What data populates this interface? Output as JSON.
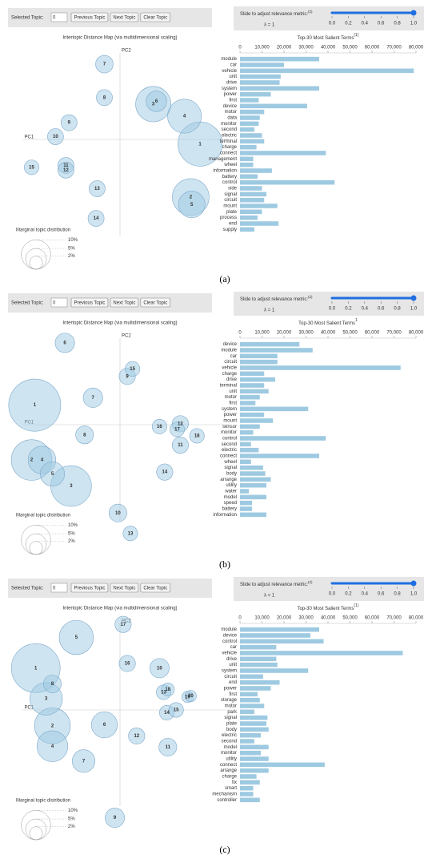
{
  "panels": [
    {
      "caption": "(a)",
      "controls": {
        "selected_topic_label": "Selected Topic:",
        "selected_topic": "0",
        "buttons": [
          "Previous Topic",
          "Next Topic",
          "Clear Topic"
        ],
        "slider_label": "Slide to adjust relevance metric:",
        "slider_note": "(2)",
        "slider_lim": [
          0,
          1
        ],
        "slider_ticks": [
          {
            "value": 0,
            "label": "0.0"
          },
          {
            "value": 0.2,
            "label": "0.2"
          },
          {
            "value": 0.4,
            "label": "0.4"
          },
          {
            "value": 0.6,
            "label": "0.6"
          },
          {
            "value": 0.8,
            "label": "0.8"
          },
          {
            "value": 1,
            "label": "1.0"
          }
        ],
        "slider_value": 1,
        "lambda_label": "λ = 1"
      }
    },
    {
      "caption": "(b)",
      "controls": {
        "selected_topic_label": "Selected Topic:",
        "selected_topic": "0",
        "buttons": [
          "Previous Topic",
          "Next Topic",
          "Clear Topic"
        ],
        "slider_label": "Slide to adjust relevance metric:",
        "slider_note": "(2)",
        "slider_lim": [
          0,
          1
        ],
        "slider_ticks": [
          {
            "value": 0,
            "label": "0.0"
          },
          {
            "value": 0.2,
            "label": "0.2"
          },
          {
            "value": 0.4,
            "label": "0.4"
          },
          {
            "value": 0.6,
            "label": "0.6"
          },
          {
            "value": 0.8,
            "label": "0.8"
          },
          {
            "value": 1,
            "label": "1.0"
          }
        ],
        "slider_value": 1,
        "lambda_label": "λ = 1"
      }
    },
    {
      "caption": "(c)",
      "controls": {
        "selected_topic_label": "Selected Topic:",
        "selected_topic": "0",
        "buttons": [
          "Previous Topic",
          "Next Topic",
          "Clear Topic"
        ],
        "slider_label": "Slide to adjust relevance metric:",
        "slider_note": "(2)",
        "slider_lim": [
          0,
          1
        ],
        "slider_ticks": [
          {
            "value": 0,
            "label": "0.0"
          },
          {
            "value": 0.2,
            "label": "0.2"
          },
          {
            "value": 0.4,
            "label": "0.4"
          },
          {
            "value": 0.6,
            "label": "0.6"
          },
          {
            "value": 0.8,
            "label": "0.8"
          },
          {
            "value": 1,
            "label": "1.0"
          }
        ],
        "slider_value": 1,
        "lambda_label": "λ = 1"
      }
    }
  ],
  "chart_data": [
    {
      "type": "scatter",
      "title": "Intertopic Distance Map (via multidimensional scaling)",
      "x_label": "PC1",
      "y_label": "PC2",
      "xlim": [
        -1.05,
        1.05
      ],
      "ylim": [
        -1.25,
        1.0
      ],
      "color": "#9ecae1",
      "labels": [
        "1",
        "2",
        "3",
        "4",
        "5",
        "6",
        "7",
        "8",
        "9",
        "10",
        "11",
        "12",
        "13",
        "14",
        "15"
      ],
      "x": [
        0.77,
        0.68,
        0.32,
        0.62,
        0.69,
        0.35,
        -0.15,
        -0.15,
        -0.49,
        -0.62,
        -0.52,
        -0.52,
        -0.22,
        -0.23,
        -0.85
      ],
      "y": [
        -0.05,
        -0.62,
        0.38,
        0.25,
        -0.7,
        0.41,
        0.81,
        0.45,
        0.18,
        0.03,
        -0.28,
        -0.33,
        -0.53,
        -0.85,
        -0.3
      ],
      "sizes": [
        22.7,
        15.7,
        14.5,
        13.3,
        8.2,
        4.9,
        3.6,
        3.0,
        3.0,
        3.0,
        3.0,
        3.0,
        3.0,
        3.0,
        2.5
      ],
      "size_legend": {
        "title": "Marginal topic distribution",
        "ticks": [
          {
            "value": 2,
            "label": "2%"
          },
          {
            "value": 5,
            "label": "5%"
          },
          {
            "value": 10,
            "label": "10%"
          }
        ]
      }
    },
    {
      "type": "bar",
      "orientation": "horizontal",
      "title": "Top-30 Most Salient Terms",
      "title_note": "(1)",
      "color": "#9ecae1",
      "xlim": [
        0,
        80000
      ],
      "xticks": [
        0,
        {
          "value": 10000,
          "label": "10,000"
        },
        {
          "value": 20000,
          "label": "20,000"
        },
        {
          "value": 30000,
          "label": "30,000"
        },
        {
          "value": 40000,
          "label": "40,000"
        },
        {
          "value": 50000,
          "label": "50,000"
        },
        {
          "value": 60000,
          "label": "60,000"
        },
        {
          "value": 70000,
          "label": "70,000"
        },
        {
          "value": 80000,
          "label": "80,000"
        }
      ],
      "categories": [
        "module",
        "car",
        "vehicle",
        "unit",
        "drive",
        "system",
        "power",
        "first",
        "device",
        "motor",
        "data",
        "monitor",
        "second",
        "electric",
        "terminal",
        "charge",
        "connect",
        "management",
        "wheel",
        "information",
        "battery",
        "control",
        "side",
        "signal",
        "circuit",
        "mount",
        "plate",
        "process",
        "end",
        "supply"
      ],
      "values": [
        36000,
        20000,
        79000,
        18500,
        18000,
        36000,
        14000,
        8500,
        30500,
        11000,
        9000,
        8500,
        6500,
        10000,
        11000,
        7500,
        39000,
        6000,
        6000,
        14500,
        8000,
        43000,
        10000,
        12000,
        11000,
        17000,
        10000,
        8000,
        17500,
        6500
      ]
    },
    {
      "type": "scatter",
      "title": "Intertopic Distance Map (via multidimensional scaling)",
      "x_label": "PC1",
      "y_label": "PC2",
      "xlim": [
        -1.05,
        1.05
      ],
      "ylim": [
        -1.25,
        1.0
      ],
      "color": "#9ecae1",
      "labels": [
        "1",
        "2",
        "3",
        "4",
        "5",
        "6",
        "7",
        "8",
        "9",
        "10",
        "11",
        "12",
        "13",
        "14",
        "15",
        "16",
        "17",
        "18"
      ],
      "x": [
        -0.82,
        -0.85,
        -0.47,
        -0.75,
        -0.65,
        -0.53,
        -0.26,
        -0.34,
        0.07,
        -0.02,
        0.58,
        0.58,
        0.1,
        0.43,
        0.12,
        0.38,
        0.55,
        0.74
      ],
      "y": [
        0.21,
        -0.38,
        -0.66,
        -0.38,
        -0.53,
        0.88,
        0.29,
        -0.11,
        0.52,
        -0.95,
        -0.22,
        0.01,
        -1.17,
        -0.51,
        0.6,
        -0.02,
        -0.05,
        -0.12
      ],
      "sizes": [
        31.5,
        19.2,
        19.2,
        8.9,
        6.9,
        4.4,
        4.4,
        3.7,
        3.1,
        3.7,
        3.1,
        3.1,
        2.5,
        3.1,
        2.5,
        2.5,
        2.5,
        2.5
      ],
      "size_legend": {
        "title": "Marginal topic distribution",
        "ticks": [
          {
            "value": 2,
            "label": "2%"
          },
          {
            "value": 5,
            "label": "5%"
          },
          {
            "value": 10,
            "label": "10%"
          }
        ]
      }
    },
    {
      "type": "bar",
      "orientation": "horizontal",
      "title": "Top-30 Most Salient Terms",
      "title_note": "1",
      "color": "#9ecae1",
      "xlim": [
        0,
        80000
      ],
      "xticks": [
        0,
        {
          "value": 10000,
          "label": "10,000"
        },
        {
          "value": 20000,
          "label": "20,000"
        },
        {
          "value": 30000,
          "label": "30,000"
        },
        {
          "value": 40000,
          "label": "40,000"
        },
        {
          "value": 50000,
          "label": "50,000"
        },
        {
          "value": 60000,
          "label": "60,000"
        },
        {
          "value": 70000,
          "label": "70,000"
        },
        {
          "value": 80000,
          "label": "80,000"
        }
      ],
      "categories": [
        "device",
        "module",
        "car",
        "circuit",
        "vehicle",
        "charge",
        "drive",
        "terminal",
        "unit",
        "motor",
        "first",
        "system",
        "power",
        "mount",
        "sensor",
        "monitor",
        "control",
        "second",
        "electric",
        "connect",
        "wheel",
        "signal",
        "body",
        "arrange",
        "utility",
        "water",
        "model",
        "speed",
        "battery",
        "information"
      ],
      "values": [
        27000,
        33000,
        17000,
        17000,
        73000,
        11000,
        16000,
        11000,
        13000,
        9000,
        7000,
        31000,
        11000,
        15000,
        9000,
        6000,
        39000,
        5000,
        8500,
        36000,
        5000,
        10500,
        11500,
        14000,
        12000,
        4000,
        12000,
        5500,
        5500,
        12000
      ]
    },
    {
      "type": "scatter",
      "title": "Intertopic Distance Map (via multidimensional scaling)",
      "x_label": "PC1",
      "y_label": "PC2",
      "xlim": [
        -1.05,
        1.05
      ],
      "ylim": [
        -1.25,
        1.0
      ],
      "color": "#9ecae1",
      "labels": [
        "1",
        "2",
        "3",
        "4",
        "5",
        "6",
        "7",
        "8",
        "9",
        "10",
        "11",
        "12",
        "13",
        "14",
        "15",
        "16",
        "17",
        "18",
        "19",
        "20"
      ],
      "x": [
        -0.81,
        -0.65,
        -0.71,
        -0.65,
        -0.42,
        -0.15,
        -0.35,
        -0.65,
        -0.05,
        0.38,
        0.46,
        0.16,
        0.42,
        0.45,
        0.54,
        0.07,
        0.03,
        0.46,
        0.65,
        0.68
      ],
      "y": [
        0.45,
        -0.17,
        0.12,
        -0.39,
        0.78,
        -0.16,
        -0.55,
        0.28,
        -1.16,
        0.45,
        -0.4,
        -0.28,
        0.19,
        -0.03,
        0.0,
        0.5,
        0.92,
        0.22,
        0.14,
        0.15
      ],
      "sizes": [
        27.7,
        14.9,
        12.3,
        11.1,
        13.6,
        7.9,
        6.0,
        3.7,
        4.4,
        4.4,
        3.7,
        3.1,
        2.5,
        2.5,
        2.5,
        3.1,
        3.1,
        2.0,
        1.5,
        1.5
      ],
      "size_legend": {
        "title": "Marginal topic distribution",
        "ticks": [
          {
            "value": 2,
            "label": "2%"
          },
          {
            "value": 5,
            "label": "5%"
          },
          {
            "value": 10,
            "label": "10%"
          }
        ]
      }
    },
    {
      "type": "bar",
      "orientation": "horizontal",
      "title": "Top-30 Most Salient Terms",
      "title_note": "(1)",
      "color": "#9ecae1",
      "xlim": [
        0,
        80000
      ],
      "xticks": [
        0,
        {
          "value": 10000,
          "label": "10,000"
        },
        {
          "value": 20000,
          "label": "20,000"
        },
        {
          "value": 30000,
          "label": "30,000"
        },
        {
          "value": 40000,
          "label": "40,000"
        },
        {
          "value": 50000,
          "label": "50,000"
        },
        {
          "value": 60000,
          "label": "60,000"
        },
        {
          "value": 70000,
          "label": "70,000"
        },
        {
          "value": 80000,
          "label": "80,000"
        }
      ],
      "categories": [
        "module",
        "device",
        "control",
        "car",
        "vehicle",
        "drive",
        "unit",
        "system",
        "circuit",
        "end",
        "power",
        "first",
        "storage",
        "motor",
        "park",
        "signal",
        "plate",
        "body",
        "electric",
        "second",
        "model",
        "monitor",
        "utility",
        "connect",
        "arrange",
        "charge",
        "fix",
        "smart",
        "mechanism",
        "controller"
      ],
      "values": [
        36000,
        32000,
        38000,
        16500,
        74000,
        16500,
        17000,
        31000,
        10500,
        18000,
        14000,
        8000,
        9000,
        11000,
        6500,
        12500,
        12000,
        13000,
        9500,
        6500,
        13000,
        9500,
        13000,
        38500,
        13000,
        7500,
        9000,
        6000,
        6000,
        9000
      ]
    }
  ]
}
